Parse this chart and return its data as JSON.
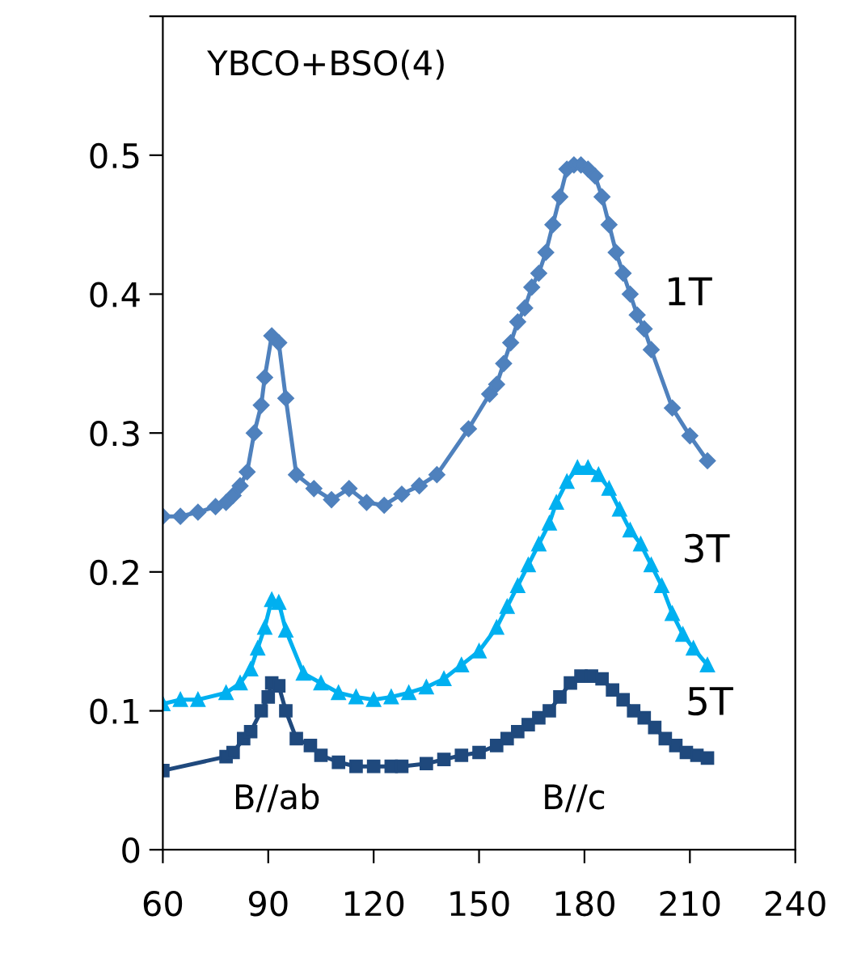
{
  "chart_data": {
    "type": "line",
    "annotations": [
      "YBCO+BSO(4)",
      "B//ab",
      "B//c"
    ],
    "xlim": [
      60,
      240
    ],
    "xticks": [
      60,
      90,
      120,
      150,
      180,
      210,
      240
    ],
    "ylim": [
      0,
      0.6
    ],
    "yticks": [
      0,
      0.1,
      0.2,
      0.3,
      0.4,
      0.5,
      {
        "value": 0.6,
        "label": null
      }
    ],
    "grid": false,
    "legend": false,
    "line_style": "solid",
    "series": [
      {
        "name": "1T",
        "color": "#4f81bd",
        "marker": "diamond",
        "x": [
          60,
          65,
          70,
          75,
          78,
          80,
          82,
          84,
          86,
          88,
          89,
          91,
          93,
          95,
          98,
          103,
          108,
          113,
          118,
          123,
          128,
          133,
          138,
          147,
          153,
          155,
          157,
          159,
          161,
          163,
          165,
          167,
          169,
          171,
          173,
          175,
          177,
          179,
          181,
          183,
          185,
          187,
          189,
          191,
          193,
          195,
          197,
          199,
          205,
          210,
          215
        ],
        "values": [
          0.24,
          0.24,
          0.243,
          0.247,
          0.25,
          0.255,
          0.262,
          0.272,
          0.3,
          0.32,
          0.34,
          0.37,
          0.365,
          0.325,
          0.27,
          0.26,
          0.252,
          0.26,
          0.25,
          0.248,
          0.256,
          0.262,
          0.27,
          0.303,
          0.328,
          0.335,
          0.35,
          0.365,
          0.38,
          0.39,
          0.405,
          0.415,
          0.43,
          0.45,
          0.47,
          0.49,
          0.493,
          0.493,
          0.49,
          0.485,
          0.47,
          0.45,
          0.43,
          0.415,
          0.4,
          0.385,
          0.375,
          0.36,
          0.318,
          0.298,
          0.28
        ]
      },
      {
        "name": "3T",
        "color": "#00b0f0",
        "marker": "triangle",
        "x": [
          60,
          65,
          70,
          78,
          82,
          85,
          87,
          89,
          91,
          93,
          95,
          100,
          105,
          110,
          115,
          120,
          125,
          130,
          135,
          140,
          145,
          150,
          155,
          158,
          161,
          164,
          167,
          170,
          172,
          175,
          178,
          181,
          184,
          187,
          190,
          193,
          196,
          199,
          202,
          205,
          208,
          211,
          215
        ],
        "values": [
          0.105,
          0.108,
          0.108,
          0.113,
          0.12,
          0.13,
          0.145,
          0.16,
          0.18,
          0.178,
          0.158,
          0.127,
          0.12,
          0.113,
          0.11,
          0.108,
          0.11,
          0.113,
          0.117,
          0.123,
          0.133,
          0.143,
          0.16,
          0.175,
          0.19,
          0.205,
          0.22,
          0.235,
          0.25,
          0.265,
          0.275,
          0.275,
          0.27,
          0.26,
          0.245,
          0.23,
          0.22,
          0.205,
          0.19,
          0.17,
          0.155,
          0.145,
          0.133
        ]
      },
      {
        "name": "5T",
        "color": "#1f497d",
        "marker": "square",
        "x": [
          60,
          78,
          80,
          83,
          85,
          88,
          90,
          91,
          93,
          95,
          98,
          102,
          105,
          110,
          115,
          120,
          125,
          128,
          135,
          140,
          145,
          150,
          155,
          158,
          161,
          164,
          167,
          170,
          173,
          176,
          179,
          182,
          185,
          188,
          191,
          194,
          197,
          200,
          203,
          206,
          209,
          212,
          215
        ],
        "values": [
          0.057,
          0.067,
          0.07,
          0.08,
          0.085,
          0.1,
          0.11,
          0.12,
          0.118,
          0.1,
          0.08,
          0.075,
          0.068,
          0.063,
          0.06,
          0.06,
          0.06,
          0.06,
          0.062,
          0.065,
          0.068,
          0.07,
          0.075,
          0.08,
          0.085,
          0.09,
          0.095,
          0.1,
          0.11,
          0.12,
          0.125,
          0.125,
          0.123,
          0.115,
          0.108,
          0.1,
          0.095,
          0.088,
          0.08,
          0.075,
          0.07,
          0.068,
          0.066
        ]
      }
    ]
  }
}
